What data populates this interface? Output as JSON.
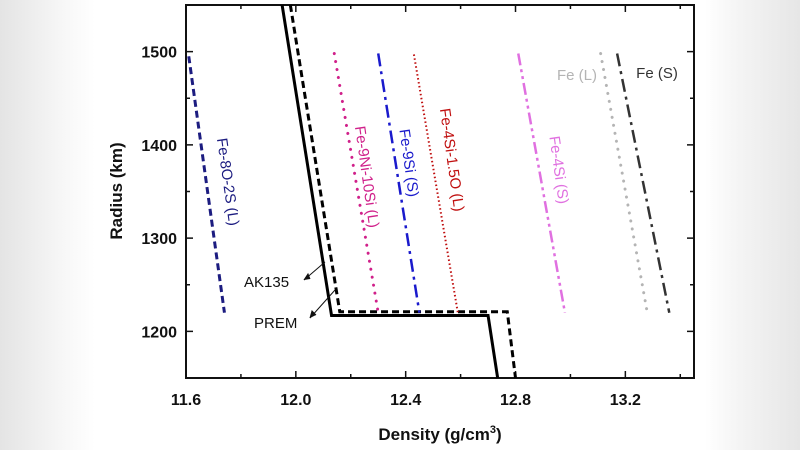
{
  "chart_data": {
    "type": "line",
    "xlabel": "Density (g/cm",
    "xlabel_sup": "3",
    "xlabel_end": ")",
    "ylabel": "Radius (km)",
    "xlim": [
      11.6,
      13.45
    ],
    "ylim": [
      1150,
      1550
    ],
    "xticks": [
      11.6,
      12.0,
      12.4,
      12.8,
      13.2
    ],
    "xtick_labels": [
      "11.6",
      "12.0",
      "12.4",
      "12.8",
      "13.2"
    ],
    "yticks": [
      1200,
      1300,
      1400,
      1500
    ],
    "ytick_labels": [
      "1200",
      "1300",
      "1400",
      "1500"
    ],
    "grid": false,
    "legend": "inline labels",
    "series": [
      {
        "name": "AK135",
        "color": "#000000",
        "style": "solid",
        "points": [
          [
            11.95,
            1550
          ],
          [
            12.13,
            1217
          ],
          [
            12.7,
            1217
          ],
          [
            12.735,
            1150
          ]
        ]
      },
      {
        "name": "PREM",
        "color": "#000000",
        "style": "dashed",
        "points": [
          [
            11.98,
            1550
          ],
          [
            12.16,
            1221
          ],
          [
            12.77,
            1221
          ],
          [
            12.8,
            1150
          ]
        ]
      },
      {
        "name": "Fe-8O-2S (L)",
        "color": "#1c1c80",
        "style": "dashed",
        "points": [
          [
            11.61,
            1495
          ],
          [
            11.74,
            1220
          ]
        ]
      },
      {
        "name": "Fe-9Ni-10Si (L)",
        "color": "#d0208a",
        "style": "dotted",
        "points": [
          [
            12.14,
            1498
          ],
          [
            12.3,
            1220
          ]
        ]
      },
      {
        "name": "Fe-9Si (S)",
        "color": "#1a1acc",
        "style": "dash-dot",
        "points": [
          [
            12.3,
            1498
          ],
          [
            12.45,
            1220
          ]
        ]
      },
      {
        "name": "Fe-4Si-1.5O (L)",
        "color": "#c01010",
        "style": "short-dot",
        "points": [
          [
            12.43,
            1497
          ],
          [
            12.59,
            1220
          ]
        ]
      },
      {
        "name": "Fe-4Si (S)",
        "color": "#e070e0",
        "style": "dash-dot-dot",
        "points": [
          [
            12.81,
            1498
          ],
          [
            12.98,
            1220
          ]
        ]
      },
      {
        "name": "Fe (L)",
        "color": "#b4b4b4",
        "style": "dotted",
        "points": [
          [
            13.11,
            1498
          ],
          [
            13.28,
            1220
          ]
        ]
      },
      {
        "name": "Fe (S)",
        "color": "#333333",
        "style": "dash-dot",
        "points": [
          [
            13.17,
            1498
          ],
          [
            13.36,
            1220
          ]
        ]
      }
    ]
  }
}
